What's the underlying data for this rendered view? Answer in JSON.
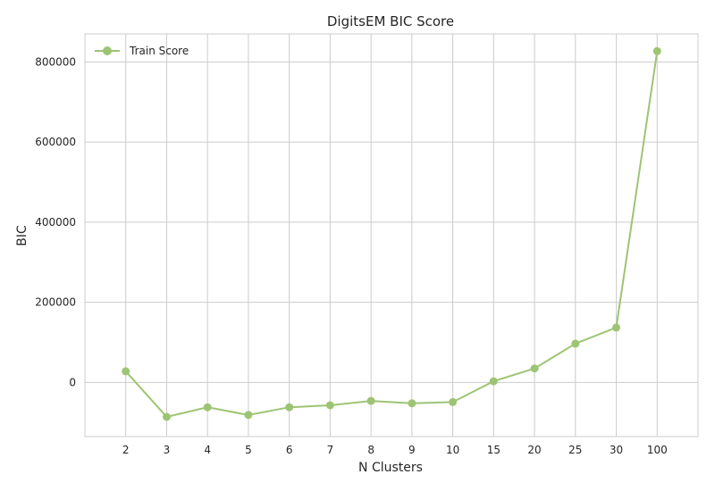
{
  "chart_data": {
    "type": "line",
    "title": "DigitsEM BIC Score",
    "xlabel": "N Clusters",
    "ylabel": "BIC",
    "x": [
      "2",
      "3",
      "4",
      "5",
      "6",
      "7",
      "8",
      "9",
      "10",
      "15",
      "20",
      "25",
      "30",
      "100"
    ],
    "series": [
      {
        "name": "Train Score",
        "color": "#9dc474",
        "values": [
          28000,
          -86000,
          -62000,
          -81000,
          -62000,
          -57000,
          -46000,
          -52000,
          -49000,
          3000,
          35000,
          97000,
          137000,
          827000
        ]
      }
    ],
    "ylim": [
      -135000,
      870000
    ],
    "yticks": [
      0,
      200000,
      400000,
      600000,
      800000
    ],
    "ytick_labels": [
      "0",
      "200000",
      "400000",
      "600000",
      "800000"
    ],
    "grid": true,
    "legend_position": "top-left"
  }
}
